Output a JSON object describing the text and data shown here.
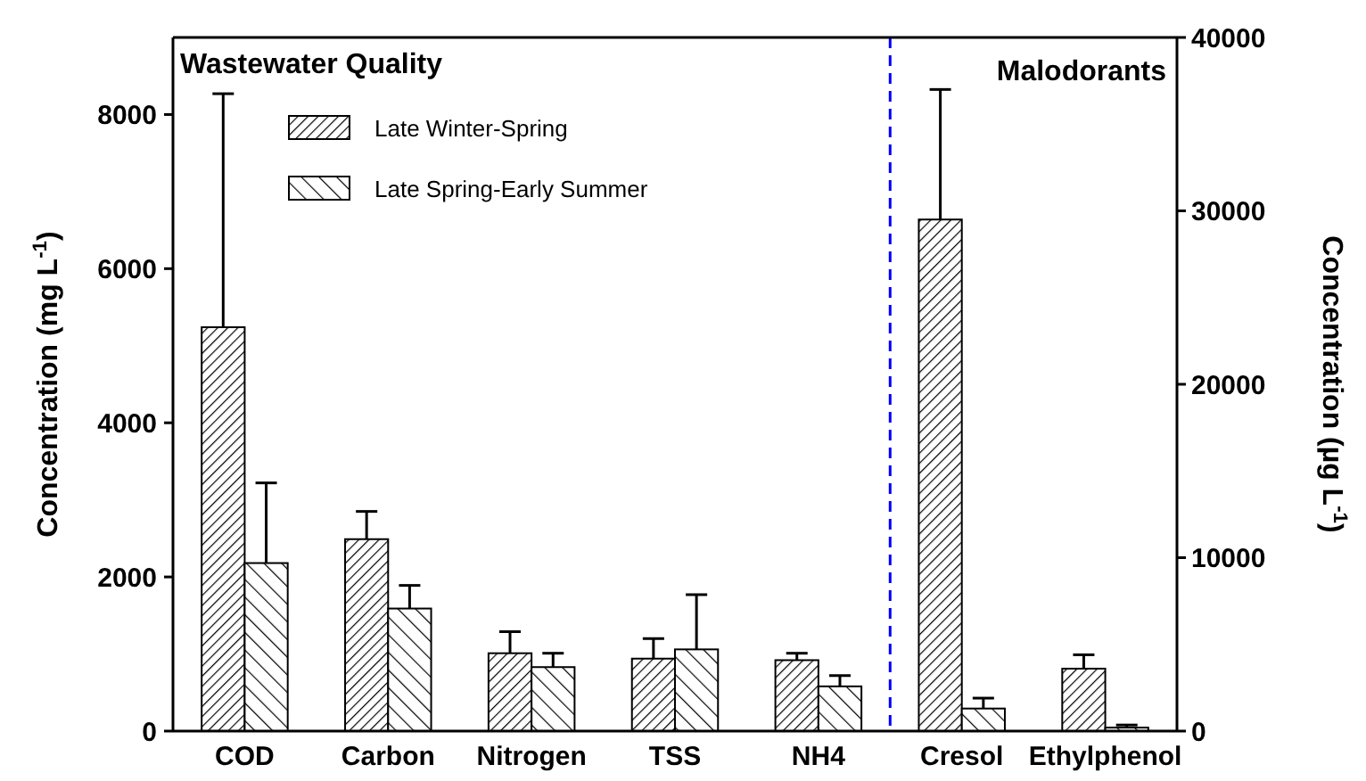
{
  "chart_data": {
    "type": "bar",
    "categories": [
      "COD",
      "Carbon",
      "Nitrogen",
      "TSS",
      "NH4",
      "Cresol",
      "Ethylphenol"
    ],
    "ylabel": "Concentration (mg L$^{-1}$)",
    "y2label": "Concentration (µg L$^{-1}$)",
    "ylim": [
      0,
      9000
    ],
    "yticks": [
      0,
      2000,
      4000,
      6000,
      8000
    ],
    "y2lim": [
      0,
      40000
    ],
    "y2ticks": [
      0,
      10000,
      20000,
      30000,
      40000
    ],
    "series": [
      {
        "name": "Late Winter-Spring",
        "color": "#000000",
        "values": [
          5240,
          2490,
          1010,
          940,
          920,
          null,
          null
        ],
        "errors": [
          [
            5240,
            8270
          ],
          [
            2490,
            2850
          ],
          [
            1010,
            1290
          ],
          [
            940,
            1200
          ],
          [
            920,
            1010
          ],
          null,
          null
        ]
      },
      {
        "name": "Late Spring-Early Summer",
        "color": "#000000",
        "values": [
          2180,
          1590,
          830,
          1060,
          580,
          null,
          null
        ],
        "errors": [
          [
            2180,
            3220
          ],
          [
            1590,
            1890
          ],
          [
            830,
            1010
          ],
          [
            1060,
            1770
          ],
          [
            580,
            720
          ],
          null,
          null
        ]
      },
      {
        "color": "#000000",
        "axis": "y2",
        "values": [
          null,
          null,
          null,
          null,
          null,
          29500,
          3600
        ],
        "errors": [
          null,
          null,
          null,
          null,
          null,
          [
            29500,
            37000
          ],
          [
            3600,
            4400
          ]
        ]
      },
      {
        "color": "#000000",
        "axis": "y2",
        "values": [
          null,
          null,
          null,
          null,
          null,
          1300,
          200
        ],
        "errors": [
          null,
          null,
          null,
          null,
          null,
          [
            1300,
            1900
          ],
          [
            200,
            350
          ]
        ]
      }
    ],
    "annotations": [
      "Wastewater Quality",
      "Malodorants"
    ],
    "legend": "top left",
    "grid": false
  }
}
